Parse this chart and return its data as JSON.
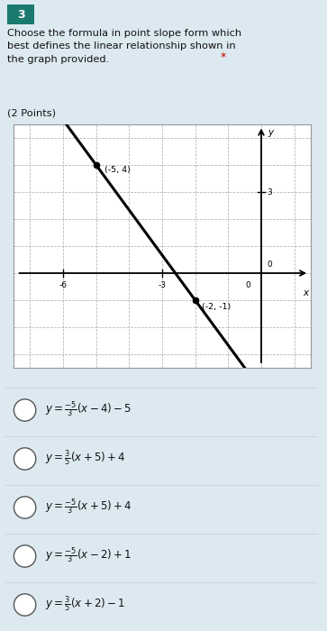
{
  "bg_color": "#dce9f0",
  "question_number_bg": "#1a7a6e",
  "question_number": "3",
  "asterisk_color": "#cc0000",
  "graph_bg": "#ffffff",
  "point1": [
    -5,
    4
  ],
  "point2": [
    -2,
    -1
  ],
  "label1": "(-5, 4)",
  "label2": "(-2, -1)",
  "xlim": [
    -7.5,
    1.5
  ],
  "ylim": [
    -3.5,
    5.5
  ],
  "option_latex": [
    "$y = \\frac{-5}{3}(x - 4) - 5$",
    "$y = \\frac{3}{5}(x + 5) + 4$",
    "$y = \\frac{-5}{3}(x + 5) + 4$",
    "$y = \\frac{-5}{3}(x - 2) + 1$",
    "$y = \\frac{3}{5}(x + 2) - 1$"
  ],
  "fig_width": 3.63,
  "fig_height": 7.0,
  "dpi": 100
}
